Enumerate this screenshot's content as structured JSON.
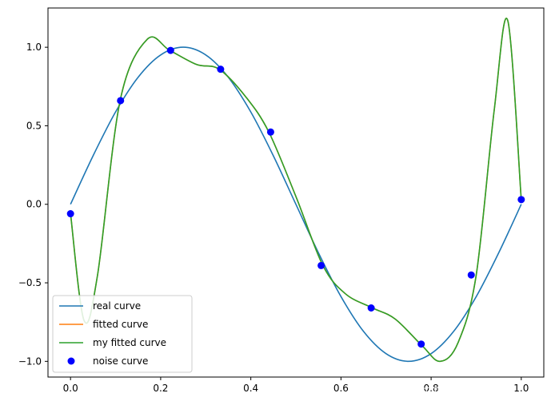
{
  "chart_data": {
    "type": "line",
    "xlim": [
      -0.05,
      1.05
    ],
    "ylim": [
      -1.1,
      1.25
    ],
    "xticks": [
      0.0,
      0.2,
      0.4,
      0.6,
      0.8,
      1.0
    ],
    "xtick_labels": [
      "0.0",
      "0.2",
      "0.4",
      "0.6",
      "0.8",
      "1.0"
    ],
    "yticks": [
      -1.0,
      -0.5,
      0.0,
      0.5,
      1.0
    ],
    "ytick_labels": [
      "−1.0",
      "−0.5",
      "0.0",
      "0.5",
      "1.0"
    ],
    "grid": false,
    "legend_position": "lower-left",
    "series": [
      {
        "name": "real curve",
        "kind": "line",
        "color": "#1f77b4",
        "x": [
          0.0,
          0.05,
          0.1,
          0.15,
          0.2,
          0.25,
          0.3,
          0.35,
          0.4,
          0.45,
          0.5,
          0.55,
          0.6,
          0.65,
          0.7,
          0.75,
          0.8,
          0.85,
          0.9,
          0.95,
          1.0
        ],
        "y": [
          0.0,
          0.309,
          0.588,
          0.809,
          0.951,
          1.0,
          0.951,
          0.809,
          0.588,
          0.309,
          0.0,
          -0.309,
          -0.588,
          -0.809,
          -0.951,
          -1.0,
          -0.951,
          -0.809,
          -0.588,
          -0.309,
          0.0
        ]
      },
      {
        "name": "fitted curve",
        "kind": "line",
        "color": "#ff7f0e",
        "x": [
          0.0,
          0.03,
          0.06,
          0.11,
          0.17,
          0.22,
          0.28,
          0.33,
          0.39,
          0.44,
          0.5,
          0.56,
          0.61,
          0.67,
          0.72,
          0.78,
          0.82,
          0.86,
          0.9,
          0.94,
          0.97,
          1.0
        ],
        "y": [
          -0.06,
          -0.74,
          -0.45,
          0.66,
          1.05,
          0.98,
          0.89,
          0.86,
          0.68,
          0.46,
          0.05,
          -0.39,
          -0.57,
          -0.66,
          -0.73,
          -0.9,
          -1.0,
          -0.88,
          -0.45,
          0.6,
          1.17,
          0.03
        ]
      },
      {
        "name": "my fitted curve",
        "kind": "line",
        "color": "#2ca02c",
        "x": [
          0.0,
          0.03,
          0.06,
          0.11,
          0.17,
          0.22,
          0.28,
          0.33,
          0.39,
          0.44,
          0.5,
          0.56,
          0.61,
          0.67,
          0.72,
          0.78,
          0.82,
          0.86,
          0.9,
          0.94,
          0.97,
          1.0
        ],
        "y": [
          -0.06,
          -0.74,
          -0.45,
          0.66,
          1.05,
          0.98,
          0.89,
          0.86,
          0.68,
          0.46,
          0.05,
          -0.39,
          -0.57,
          -0.66,
          -0.73,
          -0.9,
          -1.0,
          -0.88,
          -0.45,
          0.6,
          1.17,
          0.03
        ]
      },
      {
        "name": "noise curve",
        "kind": "scatter",
        "color": "#0000ff",
        "x": [
          0.0,
          0.111,
          0.222,
          0.333,
          0.444,
          0.556,
          0.667,
          0.778,
          0.889,
          1.0
        ],
        "y": [
          -0.06,
          0.66,
          0.98,
          0.86,
          0.46,
          -0.39,
          -0.66,
          -0.89,
          -0.45,
          0.03
        ]
      }
    ]
  },
  "watermark": "知乎 @绫风ftw"
}
